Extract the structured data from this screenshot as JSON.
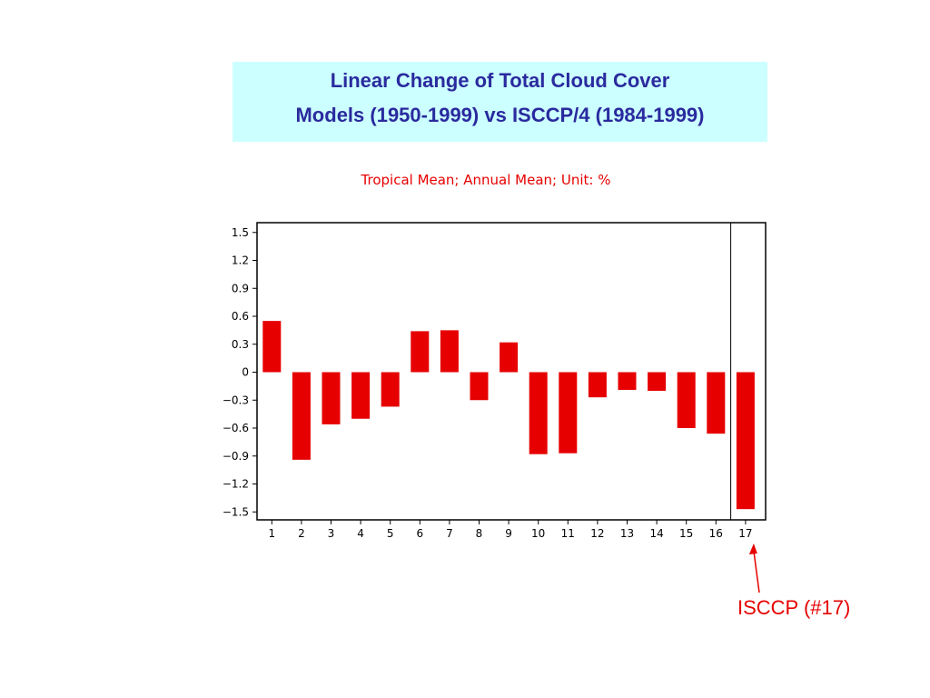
{
  "header": {
    "title_line1": "Linear Change of Total Cloud Cover",
    "title_line2": "Models (1950-1999) vs ISCCP/4 (1984-1999)"
  },
  "chart_data": {
    "type": "bar",
    "subtitle": "Tropical Mean; Annual Mean; Unit: %",
    "categories": [
      "1",
      "2",
      "3",
      "4",
      "5",
      "6",
      "7",
      "8",
      "9",
      "10",
      "11",
      "12",
      "13",
      "14",
      "15",
      "16",
      "17"
    ],
    "values": [
      0.55,
      -0.94,
      -0.56,
      -0.5,
      -0.37,
      0.44,
      0.45,
      -0.3,
      0.32,
      -0.88,
      -0.87,
      -0.27,
      -0.19,
      -0.2,
      -0.6,
      -0.66,
      -1.47
    ],
    "yticks": [
      "1.5",
      "1.2",
      "0.9",
      "0.6",
      "0.3",
      "0",
      "−0.3",
      "−0.6",
      "−0.9",
      "−1.2",
      "−1.5"
    ],
    "ylim": [
      -1.6,
      1.6
    ],
    "xlabel": "",
    "ylabel": "",
    "bar_color": "#e60000",
    "separator_after_category": "16",
    "grid": false
  },
  "annotation": {
    "label": "ISCCP (#17)",
    "target_category": "17",
    "color": "#e60000"
  }
}
